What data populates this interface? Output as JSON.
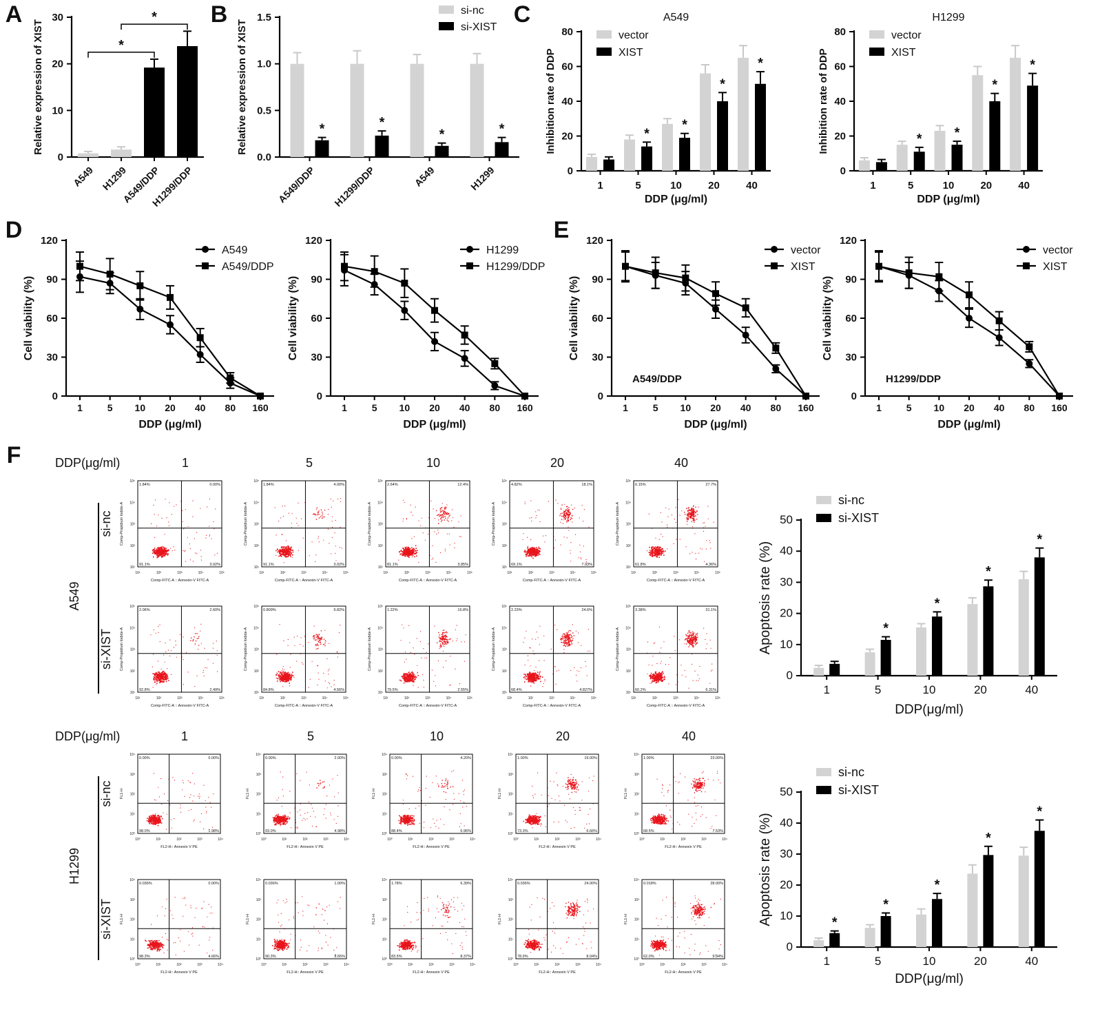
{
  "panel_letters": [
    "A",
    "B",
    "C",
    "D",
    "E",
    "F"
  ],
  "colors": {
    "black": "#000000",
    "grey": "#d3d3d3",
    "red": "#e8141b"
  },
  "chart_data": [
    {
      "id": "A",
      "type": "bar",
      "ylabel": "Relative expression of XIST",
      "ylim": [
        0,
        30
      ],
      "yticks": [
        0,
        10,
        20,
        30
      ],
      "categories": [
        "A549",
        "H1299",
        "A549/DDP",
        "H1299/DDP"
      ],
      "values": [
        0.8,
        1.6,
        19.2,
        23.8
      ],
      "errors": [
        0.4,
        0.6,
        1.8,
        3.2
      ],
      "bar_colors": [
        "grey",
        "grey",
        "black",
        "black"
      ],
      "significance": [
        {
          "label": "*",
          "from": 0,
          "to": 2
        },
        {
          "label": "*",
          "from": 1,
          "to": 3
        }
      ]
    },
    {
      "id": "B",
      "type": "bar",
      "ylabel": "Relative expression of XIST",
      "ylim": [
        0,
        1.5
      ],
      "yticks": [
        "0.0",
        "0.5",
        "1.0",
        "1.5"
      ],
      "categories": [
        "A549/DDP",
        "H1299/DDP",
        "A549",
        "H1299"
      ],
      "series": [
        {
          "name": "si-nc",
          "color": "grey",
          "values": [
            1.0,
            1.0,
            1.0,
            1.0
          ],
          "errors": [
            0.12,
            0.14,
            0.1,
            0.11
          ],
          "stars": [
            false,
            false,
            false,
            false
          ]
        },
        {
          "name": "si-XIST",
          "color": "black",
          "values": [
            0.18,
            0.23,
            0.12,
            0.16
          ],
          "errors": [
            0.03,
            0.05,
            0.03,
            0.05
          ],
          "stars": [
            true,
            true,
            true,
            true
          ]
        }
      ]
    },
    {
      "id": "C1",
      "type": "bar",
      "title": "A549",
      "ylabel": "Inhibition rate of DDP",
      "xlabel": "DDP (μg/ml)",
      "ylim": [
        0,
        80
      ],
      "yticks": [
        0,
        20,
        40,
        60,
        80
      ],
      "categories": [
        "1",
        "5",
        "10",
        "20",
        "40"
      ],
      "series": [
        {
          "name": "vector",
          "color": "grey",
          "values": [
            8,
            18,
            27,
            56,
            65
          ],
          "errors": [
            1.5,
            2.5,
            3,
            5,
            7
          ],
          "stars": [
            false,
            false,
            false,
            false,
            false
          ]
        },
        {
          "name": "XIST",
          "color": "black",
          "values": [
            6.5,
            14,
            19,
            40,
            50
          ],
          "errors": [
            1.5,
            2.5,
            2.5,
            5,
            7
          ],
          "stars": [
            false,
            true,
            true,
            true,
            true
          ]
        }
      ]
    },
    {
      "id": "C2",
      "type": "bar",
      "title": "H1299",
      "ylabel": "Inhibition rate of DDP",
      "xlabel": "DDP (μg/ml)",
      "ylim": [
        0,
        80
      ],
      "yticks": [
        0,
        20,
        40,
        60,
        80
      ],
      "categories": [
        "1",
        "5",
        "10",
        "20",
        "40"
      ],
      "series": [
        {
          "name": "vector",
          "color": "grey",
          "values": [
            6,
            15,
            23,
            55,
            65
          ],
          "errors": [
            1.5,
            2,
            3,
            5,
            7
          ],
          "stars": [
            false,
            false,
            false,
            false,
            false
          ]
        },
        {
          "name": "XIST",
          "color": "black",
          "values": [
            5,
            11,
            15,
            40,
            49
          ],
          "errors": [
            1.5,
            2.5,
            2,
            4.5,
            7
          ],
          "stars": [
            false,
            true,
            true,
            true,
            true
          ]
        }
      ]
    },
    {
      "id": "D1",
      "type": "line",
      "ylabel": "Cell viability (%)",
      "xlabel": "DDP (μg/ml)",
      "ylim": [
        0,
        120
      ],
      "yticks": [
        0,
        30,
        60,
        90,
        120
      ],
      "categories": [
        "1",
        "5",
        "10",
        "20",
        "40",
        "80",
        "160"
      ],
      "series": [
        {
          "name": "A549",
          "marker": "circle",
          "values": [
            92,
            87,
            67,
            55,
            32,
            10,
            0
          ],
          "errors": [
            12,
            8,
            8,
            7,
            6,
            4,
            0
          ]
        },
        {
          "name": "A549/DDP",
          "marker": "square",
          "values": [
            100,
            94,
            85,
            76,
            45,
            14,
            0
          ],
          "errors": [
            11,
            12,
            11,
            9,
            7,
            4,
            0
          ]
        }
      ]
    },
    {
      "id": "D2",
      "type": "line",
      "ylabel": "Cell viability (%)",
      "xlabel": "DDP (μg/ml)",
      "ylim": [
        0,
        120
      ],
      "yticks": [
        0,
        30,
        60,
        90,
        120
      ],
      "categories": [
        "1",
        "5",
        "10",
        "20",
        "40",
        "80",
        "160"
      ],
      "series": [
        {
          "name": "H1299",
          "marker": "circle",
          "values": [
            97,
            86,
            66,
            42,
            29,
            8,
            0
          ],
          "errors": [
            12,
            8,
            7,
            7,
            6,
            3,
            0
          ]
        },
        {
          "name": "H1299/DDP",
          "marker": "square",
          "values": [
            100,
            96,
            87,
            66,
            47,
            25,
            0
          ],
          "errors": [
            11,
            12,
            11,
            9,
            7,
            4,
            0
          ]
        }
      ]
    },
    {
      "id": "E1",
      "type": "line",
      "annotation": "A549/DDP",
      "ylabel": "Cell viability (%)",
      "xlabel": "DDP (μg/ml)",
      "ylim": [
        0,
        120
      ],
      "yticks": [
        0,
        30,
        60,
        90,
        120
      ],
      "categories": [
        "1",
        "5",
        "10",
        "20",
        "40",
        "80",
        "160"
      ],
      "series": [
        {
          "name": "vector",
          "marker": "circle",
          "values": [
            100,
            93,
            87,
            67,
            47,
            21,
            0
          ],
          "errors": [
            11,
            10,
            9,
            7,
            6,
            3,
            0
          ]
        },
        {
          "name": "XIST",
          "marker": "square",
          "values": [
            100,
            95,
            91,
            79,
            68,
            37,
            0
          ],
          "errors": [
            12,
            12,
            10,
            9,
            7,
            4,
            0
          ]
        }
      ]
    },
    {
      "id": "E2",
      "type": "line",
      "annotation": "H1299/DDP",
      "ylabel": "Cell viability (%)",
      "xlabel": "DDP (μg/ml)",
      "ylim": [
        0,
        120
      ],
      "yticks": [
        0,
        30,
        60,
        90,
        120
      ],
      "categories": [
        "1",
        "5",
        "10",
        "20",
        "40",
        "80",
        "160"
      ],
      "series": [
        {
          "name": "vector",
          "marker": "circle",
          "values": [
            100,
            93,
            81,
            60,
            45,
            25,
            0
          ],
          "errors": [
            11,
            10,
            8,
            7,
            6,
            3,
            0
          ]
        },
        {
          "name": "XIST",
          "marker": "square",
          "values": [
            100,
            95,
            92,
            78,
            58,
            38,
            0
          ],
          "errors": [
            12,
            12,
            11,
            10,
            7,
            4,
            0
          ]
        }
      ]
    },
    {
      "id": "F1",
      "type": "bar",
      "ylabel": "Apoptosis rate (%)",
      "xlabel": "DDP(μg/ml)",
      "ylim": [
        0,
        50
      ],
      "yticks": [
        0,
        10,
        20,
        30,
        40,
        50
      ],
      "categories": [
        "1",
        "5",
        "10",
        "20",
        "40"
      ],
      "series": [
        {
          "name": "si-nc",
          "color": "grey",
          "values": [
            2.5,
            7.5,
            15.5,
            23,
            31
          ],
          "errors": [
            0.8,
            1,
            1.2,
            2,
            2.5
          ],
          "stars": [
            false,
            false,
            false,
            false,
            false
          ]
        },
        {
          "name": "si-XIST",
          "color": "black",
          "values": [
            3.8,
            11.5,
            19,
            28.7,
            38
          ],
          "errors": [
            0.8,
            1,
            1.5,
            2,
            3
          ],
          "stars": [
            false,
            true,
            true,
            true,
            true
          ]
        }
      ]
    },
    {
      "id": "F2",
      "type": "bar",
      "ylabel": "Apoptosis rate (%)",
      "xlabel": "DDP(μg/ml)",
      "ylim": [
        0,
        50
      ],
      "yticks": [
        0,
        10,
        20,
        30,
        40,
        50
      ],
      "categories": [
        "1",
        "5",
        "10",
        "20",
        "40"
      ],
      "series": [
        {
          "name": "si-nc",
          "color": "grey",
          "values": [
            2.2,
            6.2,
            10.5,
            23.7,
            29.5
          ],
          "errors": [
            0.7,
            1,
            1.8,
            2.8,
            2.7
          ],
          "stars": [
            false,
            false,
            false,
            false,
            false
          ]
        },
        {
          "name": "si-XIST",
          "color": "black",
          "values": [
            4.5,
            10,
            15.5,
            29.7,
            37.5
          ],
          "errors": [
            0.7,
            1,
            1.8,
            2.8,
            3.5
          ],
          "stars": [
            true,
            true,
            true,
            true,
            true
          ]
        }
      ]
    }
  ],
  "flow_blocks": [
    {
      "id": "A549",
      "cell_line": "A549",
      "dose_label": "DDP(μg/ml)",
      "doses": [
        "1",
        "5",
        "10",
        "20",
        "40"
      ],
      "x_axis_label": "Comp-FITC-A :: Annexin-V FITC-A",
      "y_axis_label": "Comp-Propidium Iodide-A",
      "rows": [
        {
          "group": "si-nc",
          "quadrants": [
            {
              "ul": "1.84%",
              "ur": "0.00%",
              "ll": "91.1%",
              "lr": "3.02%"
            },
            {
              "ul": "1.84%",
              "ur": "4.00%",
              "ll": "91.1%",
              "lr": "3.02%"
            },
            {
              "ul": "2.64%",
              "ur": "12.4%",
              "ll": "81.1%",
              "lr": "3.85%"
            },
            {
              "ul": "4.82%",
              "ur": "18.1%",
              "ll": "69.1%",
              "lr": "7.93%"
            },
            {
              "ul": "6.15%",
              "ur": "27.7%",
              "ll": "61.8%",
              "lr": "4.36%"
            }
          ]
        },
        {
          "group": "si-XIST",
          "quadrants": [
            {
              "ul": "2.06%",
              "ur": "2.60%",
              "ll": "92.8%",
              "lr": "2.49%"
            },
            {
              "ul": "0.809%",
              "ur": "9.82%",
              "ll": "84.8%",
              "lr": "4.56%"
            },
            {
              "ul": "1.22%",
              "ur": "16.8%",
              "ll": "79.5%",
              "lr": "2.55%"
            },
            {
              "ul": "2.23%",
              "ur": "24.6%",
              "ll": "68.4%",
              "lr": "4.827%"
            },
            {
              "ul": "3.38%",
              "ur": "31.1%",
              "ll": "60.2%",
              "lr": "6.31%"
            }
          ]
        }
      ]
    },
    {
      "id": "H1299",
      "cell_line": "H1299",
      "dose_label": "DDP(μg/ml)",
      "doses": [
        "1",
        "5",
        "10",
        "20",
        "40"
      ],
      "x_axis_label": "FL2-H:: Annexin V PE",
      "y_axis_label": "FL1-H",
      "rows": [
        {
          "group": "si-nc",
          "quadrants": [
            {
              "ul": "0.00%",
              "ur": "0.00%",
              "ll": "98.0%",
              "lr": "1.98%"
            },
            {
              "ul": "0.00%",
              "ur": "2.00%",
              "ll": "93.0%",
              "lr": "4.98%"
            },
            {
              "ul": "0.00%",
              "ur": "4.20%",
              "ll": "88.4%",
              "lr": "6.96%"
            },
            {
              "ul": "1.00%",
              "ur": "19.00%",
              "ll": "73.3%",
              "lr": "6.66%"
            },
            {
              "ul": "1.00%",
              "ur": "23.00%",
              "ll": "68.5%",
              "lr": "7.53%"
            }
          ]
        },
        {
          "group": "si-XIST",
          "quadrants": [
            {
              "ul": "0.036%",
              "ur": "0.00%",
              "ll": "98.3%",
              "lr": "4.66%"
            },
            {
              "ul": "0.036%",
              "ur": "1.00%",
              "ll": "90.3%",
              "lr": "8.65%"
            },
            {
              "ul": "1.78%",
              "ur": "6.39%",
              "ll": "83.5%",
              "lr": "8.37%"
            },
            {
              "ul": "0.036%",
              "ur": "24.00%",
              "ll": "78.9%",
              "lr": "8.04%"
            },
            {
              "ul": "0.018%",
              "ur": "28.00%",
              "ll": "62.0%",
              "lr": "9.94%"
            }
          ]
        }
      ]
    }
  ]
}
